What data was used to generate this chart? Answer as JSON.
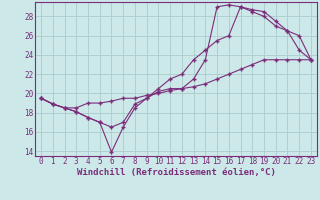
{
  "xlabel": "Windchill (Refroidissement éolien,°C)",
  "bg_color": "#cce8e8",
  "grid_color": "#aacccc",
  "line_color": "#7b2d7b",
  "hours": [
    0,
    1,
    2,
    3,
    4,
    5,
    6,
    7,
    8,
    9,
    10,
    11,
    12,
    13,
    14,
    15,
    16,
    17,
    18,
    19,
    20,
    21,
    22,
    23
  ],
  "line1": [
    19.5,
    18.9,
    18.5,
    18.1,
    17.5,
    17.0,
    16.5,
    17.0,
    18.9,
    19.5,
    20.5,
    21.5,
    22.0,
    23.5,
    24.5,
    25.5,
    26.0,
    29.0,
    28.5,
    28.0,
    27.0,
    26.5,
    26.0,
    23.5
  ],
  "line2": [
    19.5,
    18.9,
    18.5,
    18.1,
    17.5,
    17.0,
    13.9,
    16.5,
    18.5,
    19.5,
    20.2,
    20.5,
    20.5,
    21.5,
    23.5,
    29.0,
    29.2,
    29.0,
    28.7,
    28.5,
    27.5,
    26.5,
    24.5,
    23.5
  ],
  "line3": [
    19.5,
    18.9,
    18.5,
    18.5,
    19.0,
    19.0,
    19.2,
    19.5,
    19.5,
    19.8,
    20.0,
    20.3,
    20.5,
    20.7,
    21.0,
    21.5,
    22.0,
    22.5,
    23.0,
    23.5,
    23.5,
    23.5,
    23.5,
    23.5
  ],
  "ylim": [
    13.5,
    29.5
  ],
  "yticks": [
    14,
    16,
    18,
    20,
    22,
    24,
    26,
    28
  ],
  "xticks": [
    0,
    1,
    2,
    3,
    4,
    5,
    6,
    7,
    8,
    9,
    10,
    11,
    12,
    13,
    14,
    15,
    16,
    17,
    18,
    19,
    20,
    21,
    22,
    23
  ],
  "tick_fontsize": 5.5,
  "label_fontsize": 6.5
}
